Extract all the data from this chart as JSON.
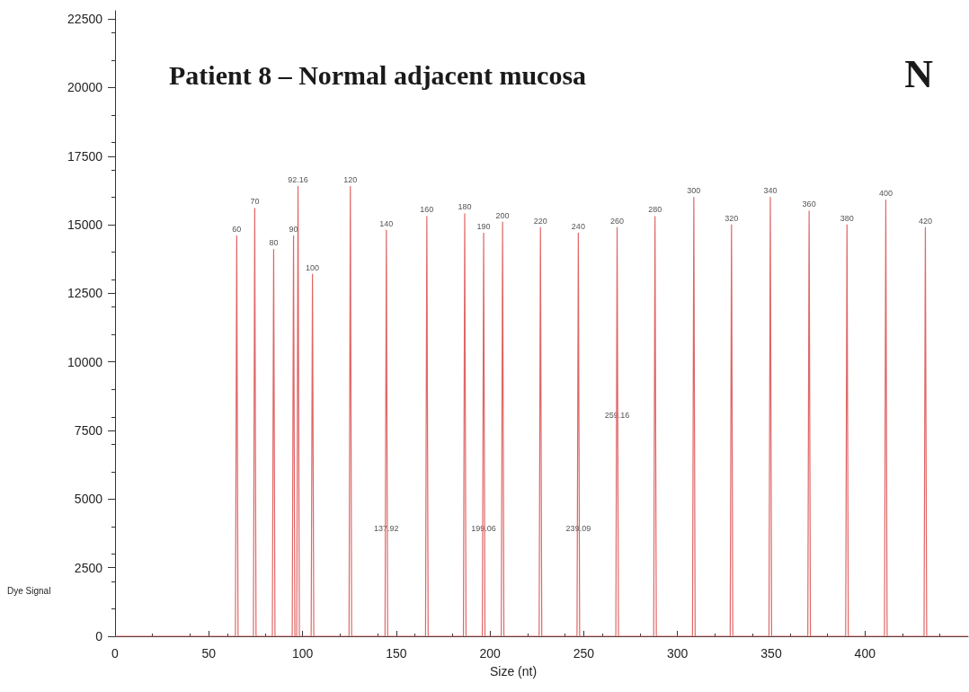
{
  "chart_data": {
    "type": "line",
    "title": "Patient 8 – Normal adjacent mucosa",
    "xlabel": "Size (nt)",
    "ylabel": "Dye Signal",
    "x": [
      0,
      53.8,
      64.2,
      64.9,
      65.6,
      73.8,
      74.5,
      75.2,
      83.9,
      84.6,
      85.3,
      94.5,
      95.2,
      95.9,
      96.9,
      97.6,
      98.3,
      104.6,
      105.3,
      106.0,
      124.8,
      125.5,
      126.2,
      144.0,
      144.7,
      145.4,
      165.6,
      166.3,
      167.0,
      185.8,
      186.5,
      187.2,
      195.9,
      196.6,
      197.3,
      206.0,
      206.7,
      207.4,
      226.2,
      226.9,
      227.6,
      246.4,
      247.1,
      247.8,
      267.1,
      267.8,
      268.5,
      287.3,
      288.0,
      288.7,
      308.0,
      308.7,
      309.4,
      328.1,
      328.8,
      329.5,
      348.8,
      349.5,
      350.2,
      369.5,
      370.2,
      370.9,
      389.7,
      390.4,
      391.1,
      410.4,
      411.1,
      411.8,
      431.5,
      432.2,
      432.9,
      455
    ],
    "series": [
      {
        "color": "#e06666",
        "values": [
          0,
          0,
          0,
          14600,
          0,
          0,
          15600,
          0,
          0,
          14100,
          0,
          0,
          14600,
          0,
          0,
          16400,
          0,
          0,
          13200,
          0,
          0,
          16400,
          0,
          0,
          14800,
          0,
          0,
          15300,
          0,
          0,
          15400,
          0,
          0,
          14700,
          0,
          0,
          15100,
          0,
          0,
          14900,
          0,
          0,
          14700,
          0,
          0,
          14900,
          0,
          0,
          15300,
          0,
          0,
          16000,
          0,
          0,
          15000,
          0,
          0,
          16000,
          0,
          0,
          15500,
          0,
          0,
          15000,
          0,
          0,
          15900,
          0,
          0,
          14900,
          0,
          0
        ]
      }
    ],
    "xlim": [
      0,
      455
    ],
    "xticks": [
      0,
      50,
      100,
      150,
      200,
      250,
      300,
      350,
      400
    ],
    "ylim": [
      0,
      22800
    ],
    "yticks": [
      0,
      2500,
      5000,
      7500,
      10000,
      12500,
      15000,
      17500,
      20000,
      22500
    ],
    "grid": false,
    "marker": "none",
    "line_style": "solid",
    "annotations": [
      "N",
      {
        "text": "60",
        "x": 64.9,
        "y": 14600
      },
      {
        "text": "70",
        "x": 74.5,
        "y": 15600
      },
      {
        "text": "80",
        "x": 84.6,
        "y": 14100
      },
      {
        "text": "90",
        "x": 95.2,
        "y": 14600
      },
      {
        "text": "92.16",
        "x": 97.6,
        "y": 16400
      },
      {
        "text": "100",
        "x": 105.3,
        "y": 13200
      },
      {
        "text": "120",
        "x": 125.5,
        "y": 16400
      },
      {
        "text": "140",
        "x": 144.7,
        "y": 14800
      },
      {
        "text": "160",
        "x": 166.3,
        "y": 15300
      },
      {
        "text": "180",
        "x": 186.5,
        "y": 15400
      },
      {
        "text": "190",
        "x": 196.6,
        "y": 14700
      },
      {
        "text": "200",
        "x": 206.7,
        "y": 15100
      },
      {
        "text": "220",
        "x": 226.9,
        "y": 14900
      },
      {
        "text": "240",
        "x": 247.1,
        "y": 14700
      },
      {
        "text": "260",
        "x": 267.8,
        "y": 14900
      },
      {
        "text": "280",
        "x": 288.0,
        "y": 15300
      },
      {
        "text": "300",
        "x": 308.7,
        "y": 16000
      },
      {
        "text": "320",
        "x": 328.8,
        "y": 15000
      },
      {
        "text": "340",
        "x": 349.5,
        "y": 16000
      },
      {
        "text": "360",
        "x": 370.2,
        "y": 15500
      },
      {
        "text": "380",
        "x": 390.4,
        "y": 15000
      },
      {
        "text": "400",
        "x": 411.1,
        "y": 15900
      },
      {
        "text": "420",
        "x": 432.2,
        "y": 14900
      },
      {
        "text": "137.92",
        "x": 144.7,
        "y": 3700
      },
      {
        "text": "199.06",
        "x": 196.6,
        "y": 3700
      },
      {
        "text": "239.09",
        "x": 247.1,
        "y": 3700
      },
      {
        "text": "259.16",
        "x": 267.8,
        "y": 7800
      }
    ]
  }
}
